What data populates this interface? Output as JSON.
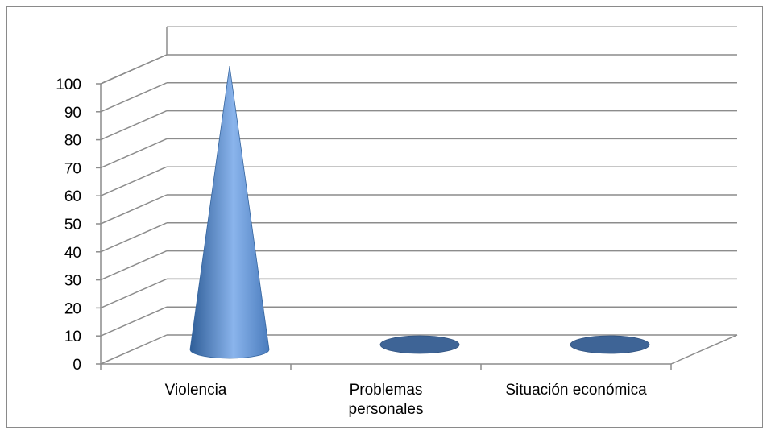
{
  "chart_data": {
    "type": "bar",
    "shape": "cone-3d",
    "categories": [
      "Violencia",
      "Problemas personales",
      "Situación económica"
    ],
    "category_lines": [
      [
        "Violencia"
      ],
      [
        "Problemas",
        "personales"
      ],
      [
        "Situación económica"
      ]
    ],
    "values": [
      100,
      0,
      0
    ],
    "ylim": [
      0,
      100
    ],
    "ytick_step": 10,
    "yticks": [
      "0",
      "10",
      "20",
      "30",
      "40",
      "50",
      "60",
      "70",
      "80",
      "90",
      "100"
    ],
    "grid": true,
    "legend": "none",
    "colors": {
      "cone_dark": "#2f5e98",
      "cone_mid": "#4f81bd",
      "cone_light": "#8ab4ec",
      "base_ellipse": "#3e6496",
      "gridline": "#8c8c8c",
      "axis": "#8c8c8c"
    }
  }
}
